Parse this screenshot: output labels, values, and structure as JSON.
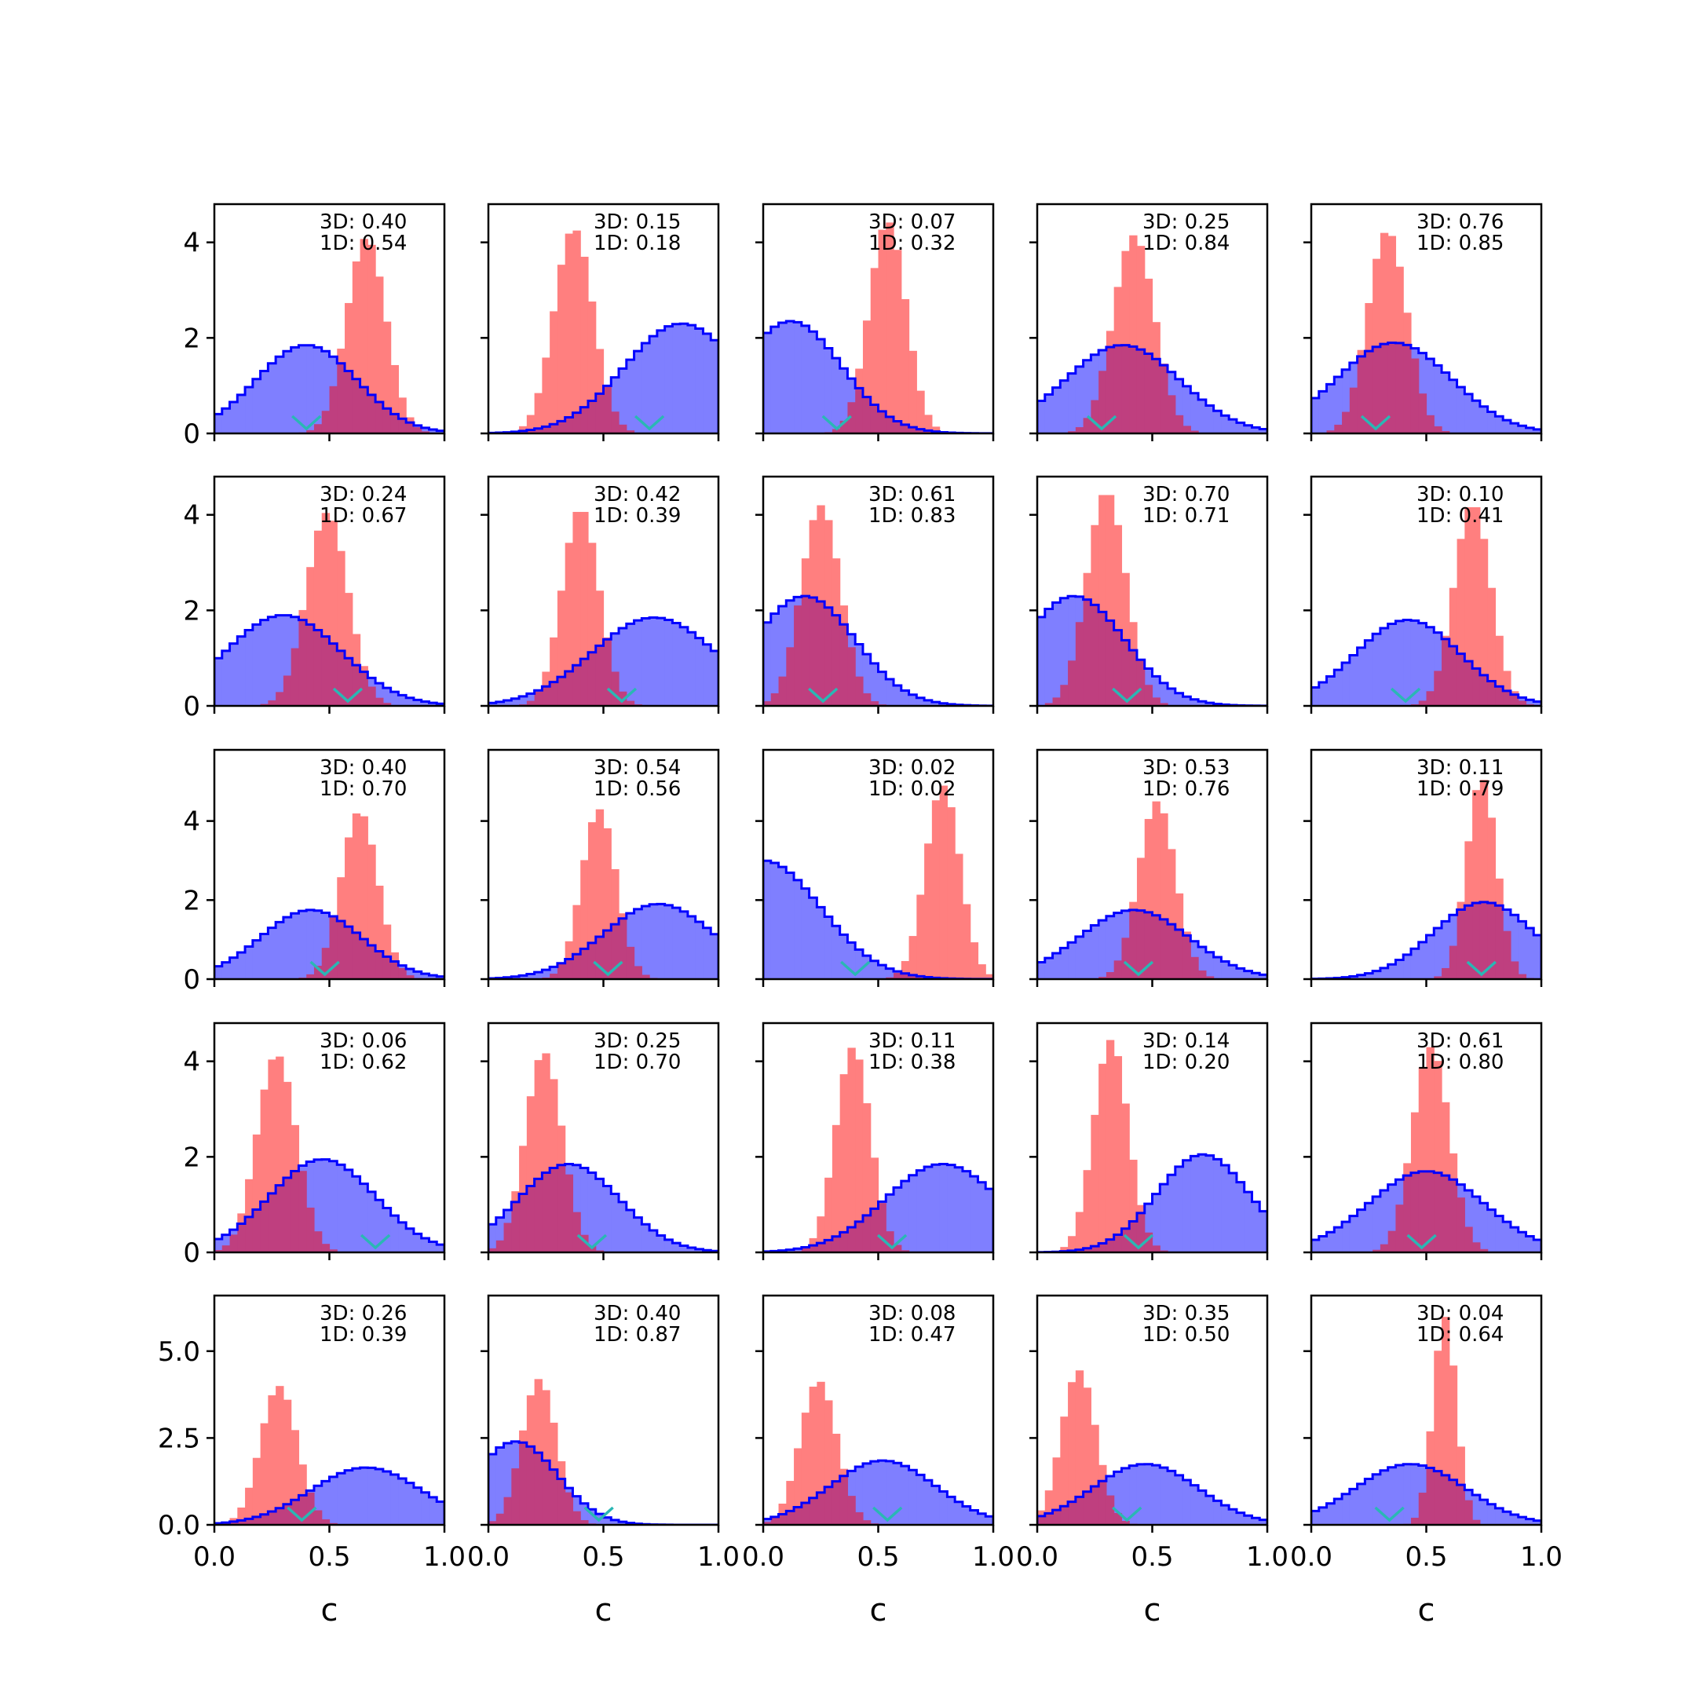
{
  "figure": {
    "type": "histogram-grid",
    "rows": 5,
    "cols": 5
  },
  "colors": {
    "blue_fill": "#7f7fff",
    "blue_edge": "#0000ff",
    "red_fill": "#ff7f7f",
    "overlap": "#bf3f7f",
    "marker": "#2ab7b4"
  },
  "chart_data": {
    "type": "histogram",
    "xlabel": "c",
    "xlim": [
      0,
      1
    ],
    "xticks": [
      "0.0",
      "0.5",
      "1.0"
    ],
    "row_ylims": [
      [
        0,
        4.8
      ],
      [
        0,
        4.8
      ],
      [
        0,
        5.8
      ],
      [
        0,
        4.8
      ],
      [
        0,
        6.6
      ]
    ],
    "row_yticks": [
      [
        "0",
        "2",
        "4"
      ],
      [
        "0",
        "2",
        "4"
      ],
      [
        "0",
        "2",
        "4"
      ],
      [
        "0",
        "2",
        "4"
      ],
      [
        "0.0",
        "2.5",
        "5.0"
      ]
    ],
    "row_ytick_values": [
      [
        0,
        2,
        4
      ],
      [
        0,
        2,
        4
      ],
      [
        0,
        2,
        4
      ],
      [
        0,
        2,
        4
      ],
      [
        0,
        2.5,
        5
      ]
    ],
    "panels": [
      {
        "label3d": "3D: 0.40",
        "label1d": "1D: 0.54",
        "blue": {
          "mu": 0.4,
          "sigma": 0.22,
          "peak": 1.85
        },
        "red": {
          "mu": 0.66,
          "sigma": 0.085,
          "peak": 4.1
        },
        "marker": 0.4
      },
      {
        "label3d": "3D: 0.15",
        "label1d": "1D: 0.18",
        "blue": {
          "mu": 0.84,
          "sigma": 0.25,
          "peak": 2.3
        },
        "red": {
          "mu": 0.37,
          "sigma": 0.085,
          "peak": 4.3
        },
        "marker": 0.7
      },
      {
        "label3d": "3D: 0.07",
        "label1d": "1D: 0.32",
        "blue": {
          "mu": 0.12,
          "sigma": 0.22,
          "peak": 2.35
        },
        "red": {
          "mu": 0.54,
          "sigma": 0.08,
          "peak": 4.45
        },
        "marker": 0.32
      },
      {
        "label3d": "3D: 0.25",
        "label1d": "1D: 0.84",
        "blue": {
          "mu": 0.37,
          "sigma": 0.25,
          "peak": 1.85
        },
        "red": {
          "mu": 0.42,
          "sigma": 0.09,
          "peak": 4.15
        },
        "marker": 0.28
      },
      {
        "label3d": "3D: 0.76",
        "label1d": "1D: 0.85",
        "blue": {
          "mu": 0.36,
          "sigma": 0.25,
          "peak": 1.9
        },
        "red": {
          "mu": 0.33,
          "sigma": 0.085,
          "peak": 4.25
        },
        "marker": 0.28
      },
      {
        "label3d": "3D: 0.24",
        "label1d": "1D: 0.67",
        "blue": {
          "mu": 0.3,
          "sigma": 0.25,
          "peak": 1.9
        },
        "red": {
          "mu": 0.49,
          "sigma": 0.09,
          "peak": 4.05
        },
        "marker": 0.58
      },
      {
        "label3d": "3D: 0.42",
        "label1d": "1D: 0.39",
        "blue": {
          "mu": 0.72,
          "sigma": 0.27,
          "peak": 1.85
        },
        "red": {
          "mu": 0.4,
          "sigma": 0.08,
          "peak": 4.15
        },
        "marker": 0.58
      },
      {
        "label3d": "3D: 0.61",
        "label1d": "1D: 0.83",
        "blue": {
          "mu": 0.18,
          "sigma": 0.22,
          "peak": 2.3
        },
        "red": {
          "mu": 0.25,
          "sigma": 0.085,
          "peak": 4.2
        },
        "marker": 0.26
      },
      {
        "label3d": "3D: 0.70",
        "label1d": "1D: 0.71",
        "blue": {
          "mu": 0.16,
          "sigma": 0.22,
          "peak": 2.3
        },
        "red": {
          "mu": 0.3,
          "sigma": 0.085,
          "peak": 4.5
        },
        "marker": 0.39
      },
      {
        "label3d": "3D: 0.10",
        "label1d": "1D: 0.41",
        "blue": {
          "mu": 0.42,
          "sigma": 0.23,
          "peak": 1.8
        },
        "red": {
          "mu": 0.7,
          "sigma": 0.08,
          "peak": 4.25
        },
        "marker": 0.41
      },
      {
        "label3d": "3D: 0.40",
        "label1d": "1D: 0.70",
        "blue": {
          "mu": 0.42,
          "sigma": 0.22,
          "peak": 1.75
        },
        "red": {
          "mu": 0.63,
          "sigma": 0.08,
          "peak": 4.25
        },
        "marker": 0.48
      },
      {
        "label3d": "3D: 0.54",
        "label1d": "1D: 0.56",
        "blue": {
          "mu": 0.74,
          "sigma": 0.24,
          "peak": 1.9
        },
        "red": {
          "mu": 0.48,
          "sigma": 0.075,
          "peak": 4.3
        },
        "marker": 0.52
      },
      {
        "label3d": "3D: 0.02",
        "label1d": "1D: 0.02",
        "blue": {
          "mu": 0.0,
          "sigma": 0.25,
          "peak": 3.0
        },
        "red": {
          "mu": 0.78,
          "sigma": 0.075,
          "peak": 4.9
        },
        "marker": 0.4
      },
      {
        "label3d": "3D: 0.53",
        "label1d": "1D: 0.76",
        "blue": {
          "mu": 0.42,
          "sigma": 0.24,
          "peak": 1.75
        },
        "red": {
          "mu": 0.52,
          "sigma": 0.08,
          "peak": 4.5
        },
        "marker": 0.44
      },
      {
        "label3d": "3D: 0.11",
        "label1d": "1D: 0.79",
        "blue": {
          "mu": 0.75,
          "sigma": 0.22,
          "peak": 1.95
        },
        "red": {
          "mu": 0.74,
          "sigma": 0.065,
          "peak": 5.1
        },
        "marker": 0.74
      },
      {
        "label3d": "3D: 0.06",
        "label1d": "1D: 0.62",
        "blue": {
          "mu": 0.47,
          "sigma": 0.23,
          "peak": 1.95
        },
        "red": {
          "mu": 0.27,
          "sigma": 0.085,
          "peak": 4.15
        },
        "marker": 0.7
      },
      {
        "label3d": "3D: 0.25",
        "label1d": "1D: 0.70",
        "blue": {
          "mu": 0.35,
          "sigma": 0.22,
          "peak": 1.85
        },
        "red": {
          "mu": 0.24,
          "sigma": 0.08,
          "peak": 4.2
        },
        "marker": 0.45
      },
      {
        "label3d": "3D: 0.11",
        "label1d": "1D: 0.38",
        "blue": {
          "mu": 0.78,
          "sigma": 0.25,
          "peak": 1.85
        },
        "red": {
          "mu": 0.39,
          "sigma": 0.075,
          "peak": 4.3
        },
        "marker": 0.56
      },
      {
        "label3d": "3D: 0.14",
        "label1d": "1D: 0.20",
        "blue": {
          "mu": 0.72,
          "sigma": 0.2,
          "peak": 2.05
        },
        "red": {
          "mu": 0.32,
          "sigma": 0.075,
          "peak": 4.45
        },
        "marker": 0.44
      },
      {
        "label3d": "3D: 0.61",
        "label1d": "1D: 0.80",
        "blue": {
          "mu": 0.5,
          "sigma": 0.25,
          "peak": 1.7
        },
        "red": {
          "mu": 0.52,
          "sigma": 0.08,
          "peak": 4.3
        },
        "marker": 0.48
      },
      {
        "label3d": "3D: 0.26",
        "label1d": "1D: 0.39",
        "blue": {
          "mu": 0.66,
          "sigma": 0.24,
          "peak": 1.65
        },
        "red": {
          "mu": 0.28,
          "sigma": 0.08,
          "peak": 4.0
        },
        "marker": 0.38
      },
      {
        "label3d": "3D: 0.40",
        "label1d": "1D: 0.87",
        "blue": {
          "mu": 0.12,
          "sigma": 0.18,
          "peak": 2.4
        },
        "red": {
          "mu": 0.22,
          "sigma": 0.075,
          "peak": 4.2
        },
        "marker": 0.48
      },
      {
        "label3d": "3D: 0.08",
        "label1d": "1D: 0.47",
        "blue": {
          "mu": 0.52,
          "sigma": 0.23,
          "peak": 1.85
        },
        "red": {
          "mu": 0.24,
          "sigma": 0.08,
          "peak": 4.15
        },
        "marker": 0.54
      },
      {
        "label3d": "3D: 0.35",
        "label1d": "1D: 0.50",
        "blue": {
          "mu": 0.47,
          "sigma": 0.23,
          "peak": 1.75
        },
        "red": {
          "mu": 0.18,
          "sigma": 0.075,
          "peak": 4.45
        },
        "marker": 0.39
      },
      {
        "label3d": "3D: 0.04",
        "label1d": "1D: 0.64",
        "blue": {
          "mu": 0.43,
          "sigma": 0.24,
          "peak": 1.75
        },
        "red": {
          "mu": 0.58,
          "sigma": 0.05,
          "peak": 6.0
        },
        "marker": 0.34
      }
    ]
  }
}
